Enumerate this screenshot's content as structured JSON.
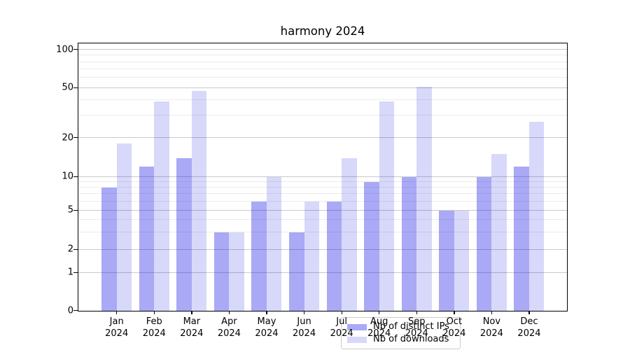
{
  "title": "harmony 2024",
  "chart_data": {
    "type": "bar",
    "title": "harmony 2024",
    "categories": [
      "Jan\n2024",
      "Feb\n2024",
      "Mar\n2024",
      "Apr\n2024",
      "May\n2024",
      "Jun\n2024",
      "Jul\n2024",
      "Aug\n2024",
      "Sep\n2024",
      "Oct\n2024",
      "Nov\n2024",
      "Dec\n2024"
    ],
    "series": [
      {
        "name": "Nb of distinct IPs",
        "color": "rgba(10,10,225,0.35)",
        "values": [
          8,
          12,
          14,
          3,
          6,
          3,
          6,
          9,
          10,
          5,
          10,
          12
        ]
      },
      {
        "name": "Nb of downloads",
        "color": "rgba(10,10,225,0.16)",
        "values": [
          18,
          39,
          47,
          3,
          10,
          6,
          14,
          39,
          51,
          5,
          15,
          27
        ]
      }
    ],
    "xlabel": "",
    "ylabel": "",
    "yscale": "asinh-log",
    "ylim": [
      0,
      112
    ],
    "yticks_major": [
      100,
      50,
      20,
      10,
      5,
      2,
      1,
      0
    ],
    "yticks_minor": [
      90,
      80,
      70,
      60,
      40,
      30,
      9,
      8,
      7,
      6,
      4,
      3
    ],
    "grid": "horizontal major and minor",
    "legend_position": "lower center"
  },
  "legend": {
    "items": [
      {
        "label": "Nb of distinct IPs"
      },
      {
        "label": "Nb of downloads"
      }
    ]
  },
  "colors": {
    "background": "#ffffff",
    "bar_ips": "rgba(10,10,225,0.35)",
    "bar_downloads": "rgba(10,10,225,0.16)",
    "grid_major": "#c9c9c9",
    "grid_minor": "#ebebeb",
    "spine": "#000000",
    "text": "#000000",
    "legend_border": "#cccccc"
  }
}
